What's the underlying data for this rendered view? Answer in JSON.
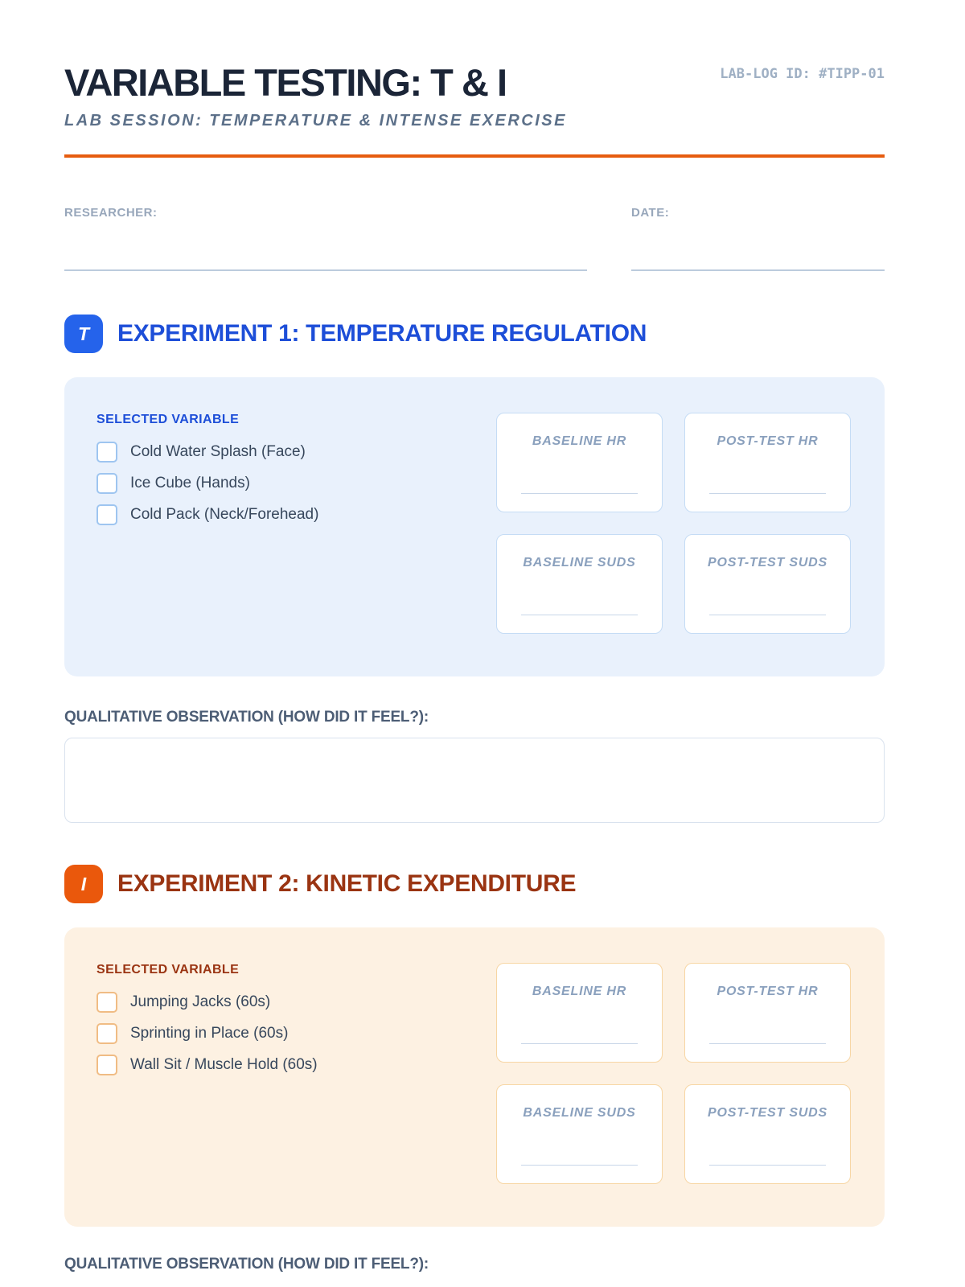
{
  "colors": {
    "title_text": "#1b2537",
    "accent_rule_orange": "#e65c0f",
    "exp1_heading_blue": "#1d4ed8",
    "exp1_badge_blue": "#2563eb",
    "exp1_panel_bg": "#e9f1fc",
    "exp2_heading_rust": "#9a3412",
    "exp2_badge_orange": "#ea580c",
    "exp2_panel_bg": "#fdf1e2"
  },
  "header": {
    "lab_log_id": "LAB-LOG ID: #TIPP-01",
    "title": "VARIABLE TESTING: T & I",
    "subtitle": "LAB SESSION: TEMPERATURE & INTENSE EXERCISE"
  },
  "meta": {
    "researcher_label": "RESEARCHER:",
    "researcher_value": "",
    "date_label": "DATE:",
    "date_value": ""
  },
  "experiments": [
    {
      "badge_letter": "T",
      "heading": "EXPERIMENT 1: TEMPERATURE REGULATION",
      "selected_variable_label": "SELECTED VARIABLE",
      "options": [
        {
          "label": "Cold Water Splash (Face)",
          "checked": false
        },
        {
          "label": "Ice Cube (Hands)",
          "checked": false
        },
        {
          "label": "Cold Pack (Neck/Forehead)",
          "checked": false
        }
      ],
      "metrics": [
        {
          "label": "BASELINE HR",
          "value": ""
        },
        {
          "label": "POST-TEST HR",
          "value": ""
        },
        {
          "label": "BASELINE SUDS",
          "value": ""
        },
        {
          "label": "POST-TEST SUDS",
          "value": ""
        }
      ],
      "observation_label": "QUALITATIVE OBSERVATION (HOW DID IT FEEL?):",
      "observation_value": ""
    },
    {
      "badge_letter": "I",
      "heading": "EXPERIMENT 2: KINETIC EXPENDITURE",
      "selected_variable_label": "SELECTED VARIABLE",
      "options": [
        {
          "label": "Jumping Jacks (60s)",
          "checked": false
        },
        {
          "label": "Sprinting in Place (60s)",
          "checked": false
        },
        {
          "label": "Wall Sit / Muscle Hold (60s)",
          "checked": false
        }
      ],
      "metrics": [
        {
          "label": "BASELINE HR",
          "value": ""
        },
        {
          "label": "POST-TEST HR",
          "value": ""
        },
        {
          "label": "BASELINE SUDS",
          "value": ""
        },
        {
          "label": "POST-TEST SUDS",
          "value": ""
        }
      ],
      "observation_label": "QUALITATIVE OBSERVATION (HOW DID IT FEEL?):",
      "observation_value": ""
    }
  ]
}
